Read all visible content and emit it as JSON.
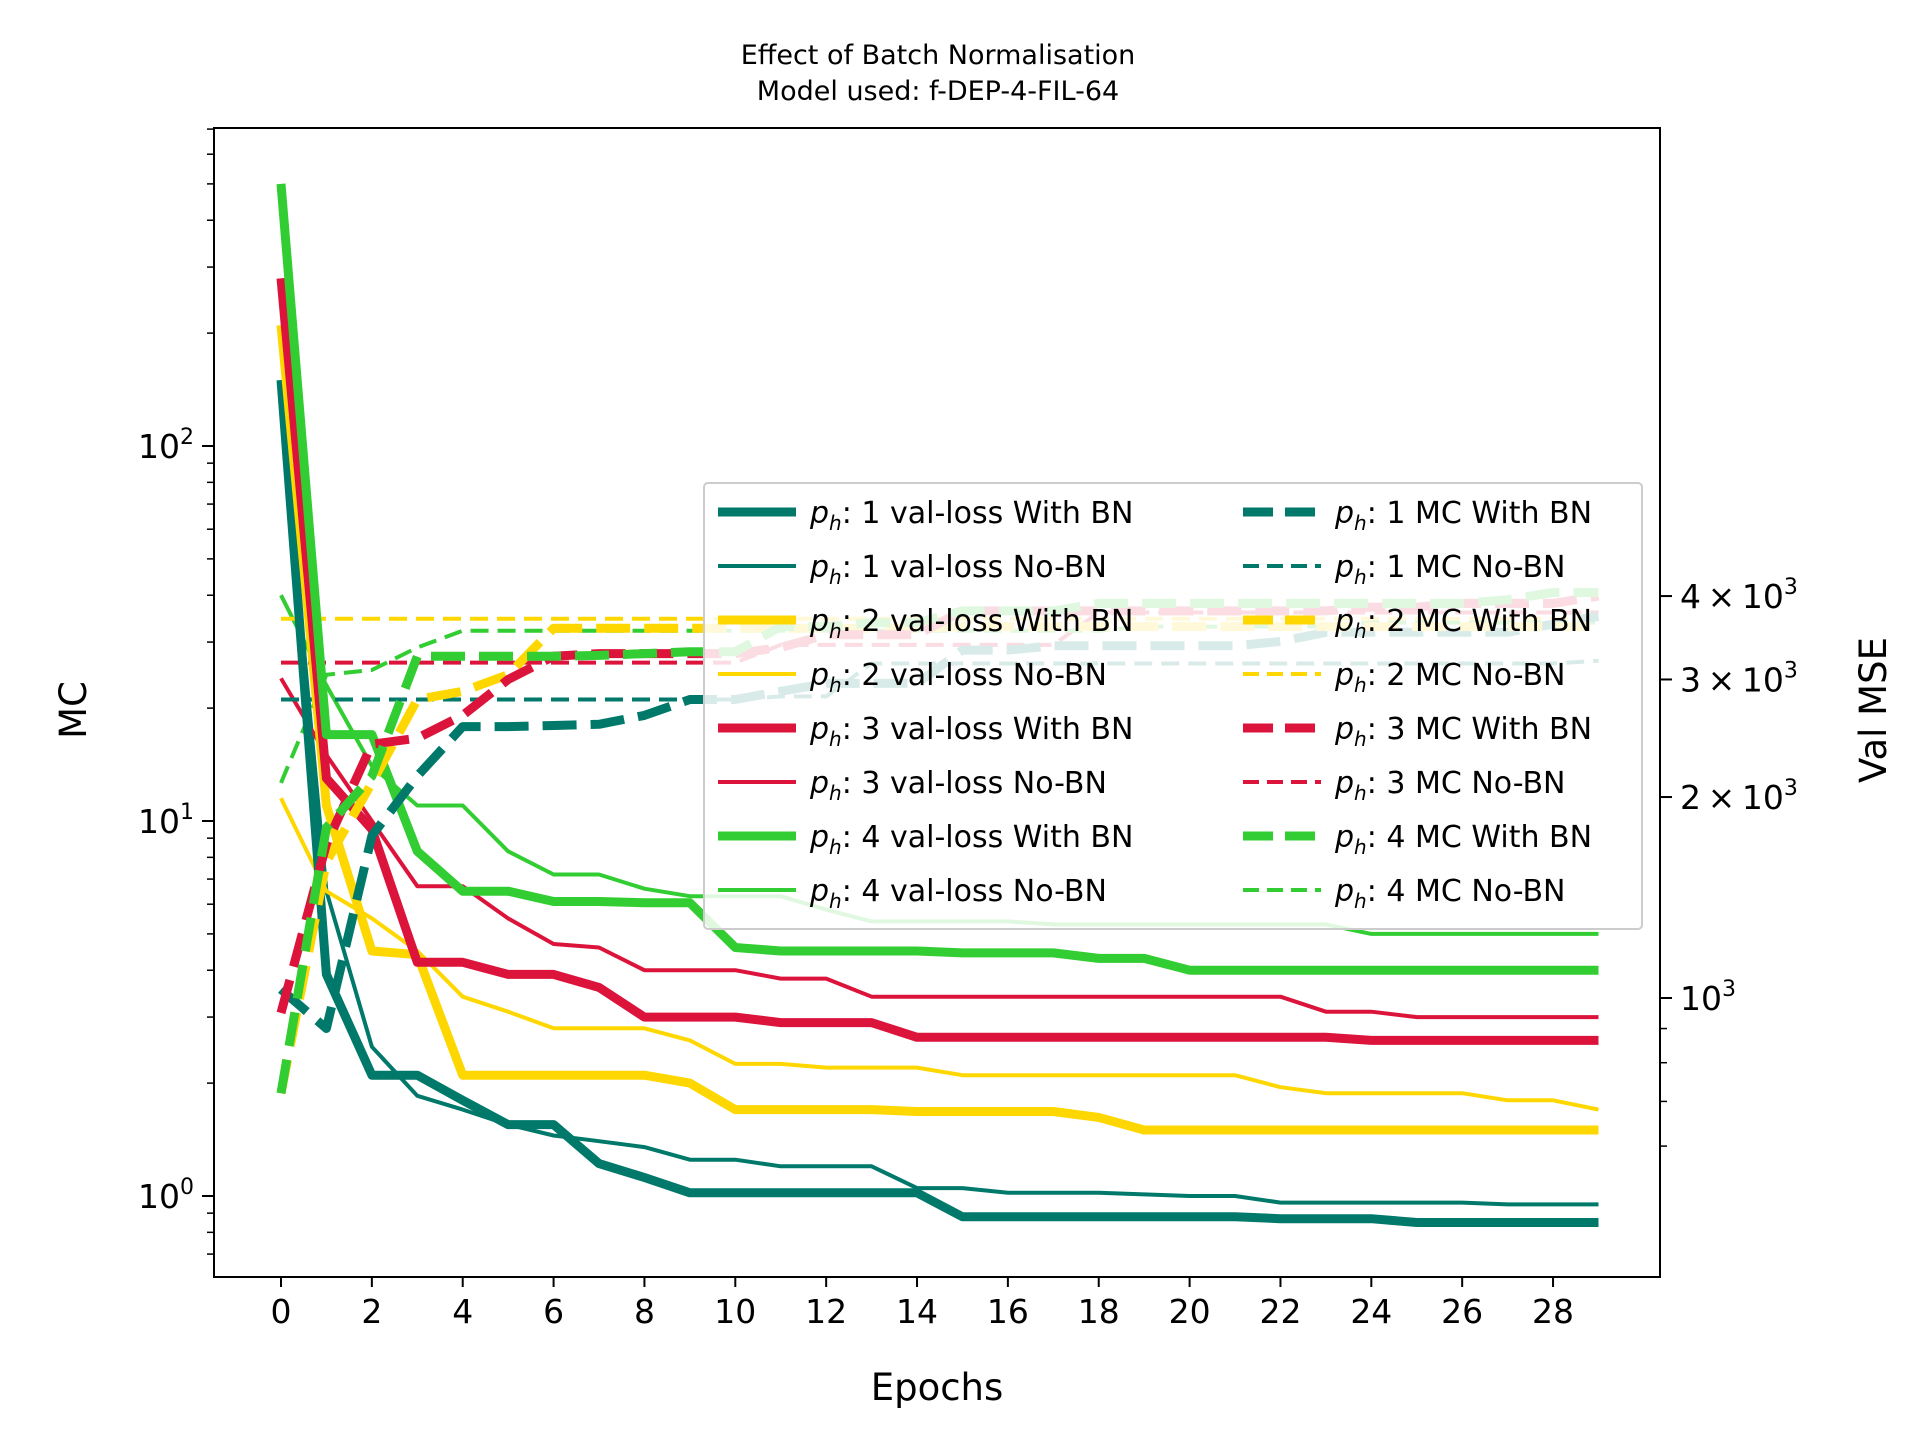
{
  "chart_data": {
    "type": "line",
    "title": "Effect of Batch Normalisation",
    "subtitle": "Model used: f-DEP-4-FIL-64",
    "xlabel": "Epochs",
    "ylabel_left": "MC",
    "ylabel_right": "Val MSE",
    "x_ticks": [
      "0",
      "2",
      "4",
      "6",
      "8",
      "10",
      "12",
      "14",
      "16",
      "18",
      "20",
      "22",
      "24",
      "26",
      "28"
    ],
    "y_left_scale": "log",
    "y_left_ticks": [
      {
        "base": "10",
        "exp": "0",
        "value": 1
      },
      {
        "base": "10",
        "exp": "1",
        "value": 10
      },
      {
        "base": "10",
        "exp": "2",
        "value": 100
      }
    ],
    "y_right_scale": "log",
    "y_right_ticks": [
      {
        "mant": "",
        "base": "10",
        "exp": "3",
        "value": 1000
      },
      {
        "mant": "2×",
        "base": "10",
        "exp": "3",
        "value": 2000
      },
      {
        "mant": "3×",
        "base": "10",
        "exp": "3",
        "value": 3000
      },
      {
        "mant": "4×",
        "base": "10",
        "exp": "3",
        "value": 4000
      }
    ],
    "grid": false,
    "legend_position": "center-right",
    "x": [
      0,
      1,
      2,
      3,
      4,
      5,
      6,
      7,
      8,
      9,
      10,
      11,
      12,
      13,
      14,
      15,
      16,
      17,
      18,
      19,
      20,
      21,
      22,
      23,
      24,
      25,
      26,
      27,
      28,
      29
    ],
    "series": [
      {
        "name": "p_h: 1 val-loss With BN",
        "axis": "left",
        "color": "#00796B",
        "style": "solid",
        "weight": "thick",
        "values": [
          150,
          3.9,
          2.1,
          2.1,
          1.8,
          1.55,
          1.55,
          1.22,
          1.12,
          1.02,
          1.02,
          1.02,
          1.02,
          1.02,
          1.02,
          0.88,
          0.88,
          0.88,
          0.88,
          0.88,
          0.88,
          0.88,
          0.87,
          0.87,
          0.87,
          0.85,
          0.85,
          0.85,
          0.85,
          0.85
        ]
      },
      {
        "name": "p_h: 1 val-loss No-BN",
        "axis": "left",
        "color": "#00796B",
        "style": "solid",
        "weight": "thin",
        "values": [
          130,
          6.5,
          2.5,
          1.85,
          1.7,
          1.55,
          1.45,
          1.4,
          1.35,
          1.25,
          1.25,
          1.2,
          1.2,
          1.2,
          1.05,
          1.05,
          1.02,
          1.02,
          1.02,
          1.01,
          1.0,
          1.0,
          0.96,
          0.96,
          0.96,
          0.96,
          0.96,
          0.95,
          0.95,
          0.95
        ]
      },
      {
        "name": "p_h: 2 val-loss With BN",
        "axis": "left",
        "color": "#FFD700",
        "style": "solid",
        "weight": "thick",
        "values": [
          210,
          11,
          4.5,
          4.4,
          2.1,
          2.1,
          2.1,
          2.1,
          2.1,
          2.0,
          1.7,
          1.7,
          1.7,
          1.7,
          1.68,
          1.68,
          1.68,
          1.68,
          1.62,
          1.5,
          1.5,
          1.5,
          1.5,
          1.5,
          1.5,
          1.5,
          1.5,
          1.5,
          1.5,
          1.5
        ]
      },
      {
        "name": "p_h: 2 val-loss No-BN",
        "axis": "left",
        "color": "#FFD700",
        "style": "solid",
        "weight": "thin",
        "values": [
          11.5,
          6.5,
          5.5,
          4.5,
          3.4,
          3.1,
          2.8,
          2.8,
          2.8,
          2.6,
          2.25,
          2.25,
          2.2,
          2.2,
          2.2,
          2.1,
          2.1,
          2.1,
          2.1,
          2.1,
          2.1,
          2.1,
          1.95,
          1.88,
          1.88,
          1.88,
          1.88,
          1.8,
          1.8,
          1.7
        ]
      },
      {
        "name": "p_h: 3 val-loss With BN",
        "axis": "left",
        "color": "#DC143C",
        "style": "solid",
        "weight": "thick",
        "values": [
          280,
          13,
          9.5,
          4.2,
          4.2,
          3.9,
          3.9,
          3.6,
          3.0,
          3.0,
          3.0,
          2.9,
          2.9,
          2.9,
          2.65,
          2.65,
          2.65,
          2.65,
          2.65,
          2.65,
          2.65,
          2.65,
          2.65,
          2.65,
          2.6,
          2.6,
          2.6,
          2.6,
          2.6,
          2.6
        ]
      },
      {
        "name": "p_h: 3 val-loss No-BN",
        "axis": "left",
        "color": "#DC143C",
        "style": "solid",
        "weight": "thin",
        "values": [
          24,
          15,
          10,
          6.7,
          6.7,
          5.5,
          4.7,
          4.6,
          4.0,
          4.0,
          4.0,
          3.8,
          3.8,
          3.4,
          3.4,
          3.4,
          3.4,
          3.4,
          3.4,
          3.4,
          3.4,
          3.4,
          3.4,
          3.1,
          3.1,
          3.0,
          3.0,
          3.0,
          3.0,
          3.0
        ]
      },
      {
        "name": "p_h: 4 val-loss With BN",
        "axis": "left",
        "color": "#32CD32",
        "style": "solid",
        "weight": "thick",
        "values": [
          500,
          17,
          17,
          8.3,
          6.5,
          6.5,
          6.1,
          6.1,
          6.05,
          6.05,
          4.6,
          4.5,
          4.5,
          4.5,
          4.5,
          4.45,
          4.45,
          4.45,
          4.3,
          4.3,
          4.0,
          4.0,
          4.0,
          4.0,
          4.0,
          4.0,
          4.0,
          4.0,
          4.0,
          4.0
        ]
      },
      {
        "name": "p_h: 4 val-loss No-BN",
        "axis": "left",
        "color": "#32CD32",
        "style": "solid",
        "weight": "thin",
        "values": [
          40,
          23,
          14,
          11,
          11,
          8.3,
          7.2,
          7.2,
          6.6,
          6.3,
          6.3,
          6.3,
          5.8,
          5.4,
          5.4,
          5.4,
          5.4,
          5.3,
          5.3,
          5.3,
          5.3,
          5.3,
          5.3,
          5.3,
          5.0,
          5.0,
          5.0,
          5.0,
          5.0,
          5.0
        ]
      },
      {
        "name": "p_h: 1 MC With BN",
        "axis": "right",
        "color": "#00796B",
        "style": "dashed",
        "weight": "thick",
        "values": [
          1030,
          900,
          1750,
          2150,
          2550,
          2550,
          2560,
          2570,
          2650,
          2800,
          2800,
          2880,
          2960,
          2960,
          2960,
          3320,
          3320,
          3370,
          3370,
          3370,
          3370,
          3370,
          3420,
          3530,
          3530,
          3530,
          3530,
          3530,
          3630,
          3730
        ]
      },
      {
        "name": "p_h: 1 MC No-BN",
        "axis": "right",
        "color": "#00796B",
        "style": "dashed",
        "weight": "thin",
        "values": [
          2800,
          2800,
          2800,
          2800,
          2800,
          2800,
          2800,
          2800,
          2800,
          2800,
          2800,
          2830,
          2830,
          3170,
          3170,
          3170,
          3170,
          3170,
          3170,
          3170,
          3170,
          3170,
          3170,
          3170,
          3170,
          3170,
          3170,
          3170,
          3170,
          3200
        ]
      },
      {
        "name": "p_h: 2 MC With BN",
        "axis": "right",
        "color": "#FFD700",
        "style": "dashed",
        "weight": "thick",
        "values": [
          720,
          1600,
          2100,
          2800,
          2880,
          3050,
          3580,
          3580,
          3580,
          3580,
          3580,
          3580,
          3580,
          3580,
          3580,
          3600,
          3600,
          3600,
          3600,
          3600,
          3600,
          3600,
          3600,
          3600,
          3600,
          3600,
          3600,
          3600,
          3600,
          3600
        ]
      },
      {
        "name": "p_h: 2 MC No-BN",
        "axis": "right",
        "color": "#FFD700",
        "style": "dashed",
        "weight": "thin",
        "values": [
          3700,
          3700,
          3700,
          3700,
          3700,
          3700,
          3700,
          3700,
          3700,
          3700,
          3700,
          3700,
          3700,
          3700,
          3700,
          3700,
          3700,
          3700,
          3700,
          3700,
          3700,
          3700,
          3700,
          3700,
          3700,
          3700,
          3700,
          3700,
          3700,
          3700
        ]
      },
      {
        "name": "p_h: 3 MC With BN",
        "axis": "right",
        "color": "#DC143C",
        "style": "dashed",
        "weight": "thick",
        "values": [
          950,
          1700,
          2400,
          2450,
          2650,
          3000,
          3250,
          3280,
          3280,
          3280,
          3280,
          3350,
          3500,
          3500,
          3500,
          3800,
          3800,
          3800,
          3800,
          3800,
          3800,
          3800,
          3800,
          3800,
          3850,
          3850,
          3900,
          3900,
          3900,
          4000
        ]
      },
      {
        "name": "p_h: 3 MC No-BN",
        "axis": "right",
        "color": "#DC143C",
        "style": "dashed",
        "weight": "thin",
        "values": [
          3180,
          3180,
          3180,
          3180,
          3180,
          3180,
          3180,
          3180,
          3180,
          3180,
          3180,
          3380,
          3380,
          3380,
          3380,
          3380,
          3380,
          3380,
          3780,
          3780,
          3780,
          3780,
          3780,
          3780,
          3780,
          3780,
          3780,
          3780,
          3780,
          3780
        ]
      },
      {
        "name": "p_h: 4 MC With BN",
        "axis": "right",
        "color": "#32CD32",
        "style": "dashed",
        "weight": "thick",
        "values": [
          720,
          1800,
          2150,
          3250,
          3250,
          3250,
          3250,
          3260,
          3280,
          3300,
          3300,
          3600,
          3600,
          3650,
          3650,
          3800,
          3800,
          3800,
          3900,
          3900,
          3900,
          3900,
          3900,
          3900,
          3900,
          3900,
          3900,
          3950,
          4050,
          4050
        ]
      },
      {
        "name": "p_h: 4 MC No-BN",
        "axis": "right",
        "color": "#32CD32",
        "style": "dashed",
        "weight": "thin",
        "values": [
          2100,
          3050,
          3100,
          3350,
          3550,
          3550,
          3550,
          3550,
          3550,
          3550,
          3550,
          3550,
          3550,
          3550,
          3550,
          3550,
          3550,
          3550,
          3550,
          3600,
          3600,
          3600,
          3600,
          3600,
          3650,
          3650,
          3650,
          3650,
          3650,
          3650
        ]
      }
    ]
  }
}
